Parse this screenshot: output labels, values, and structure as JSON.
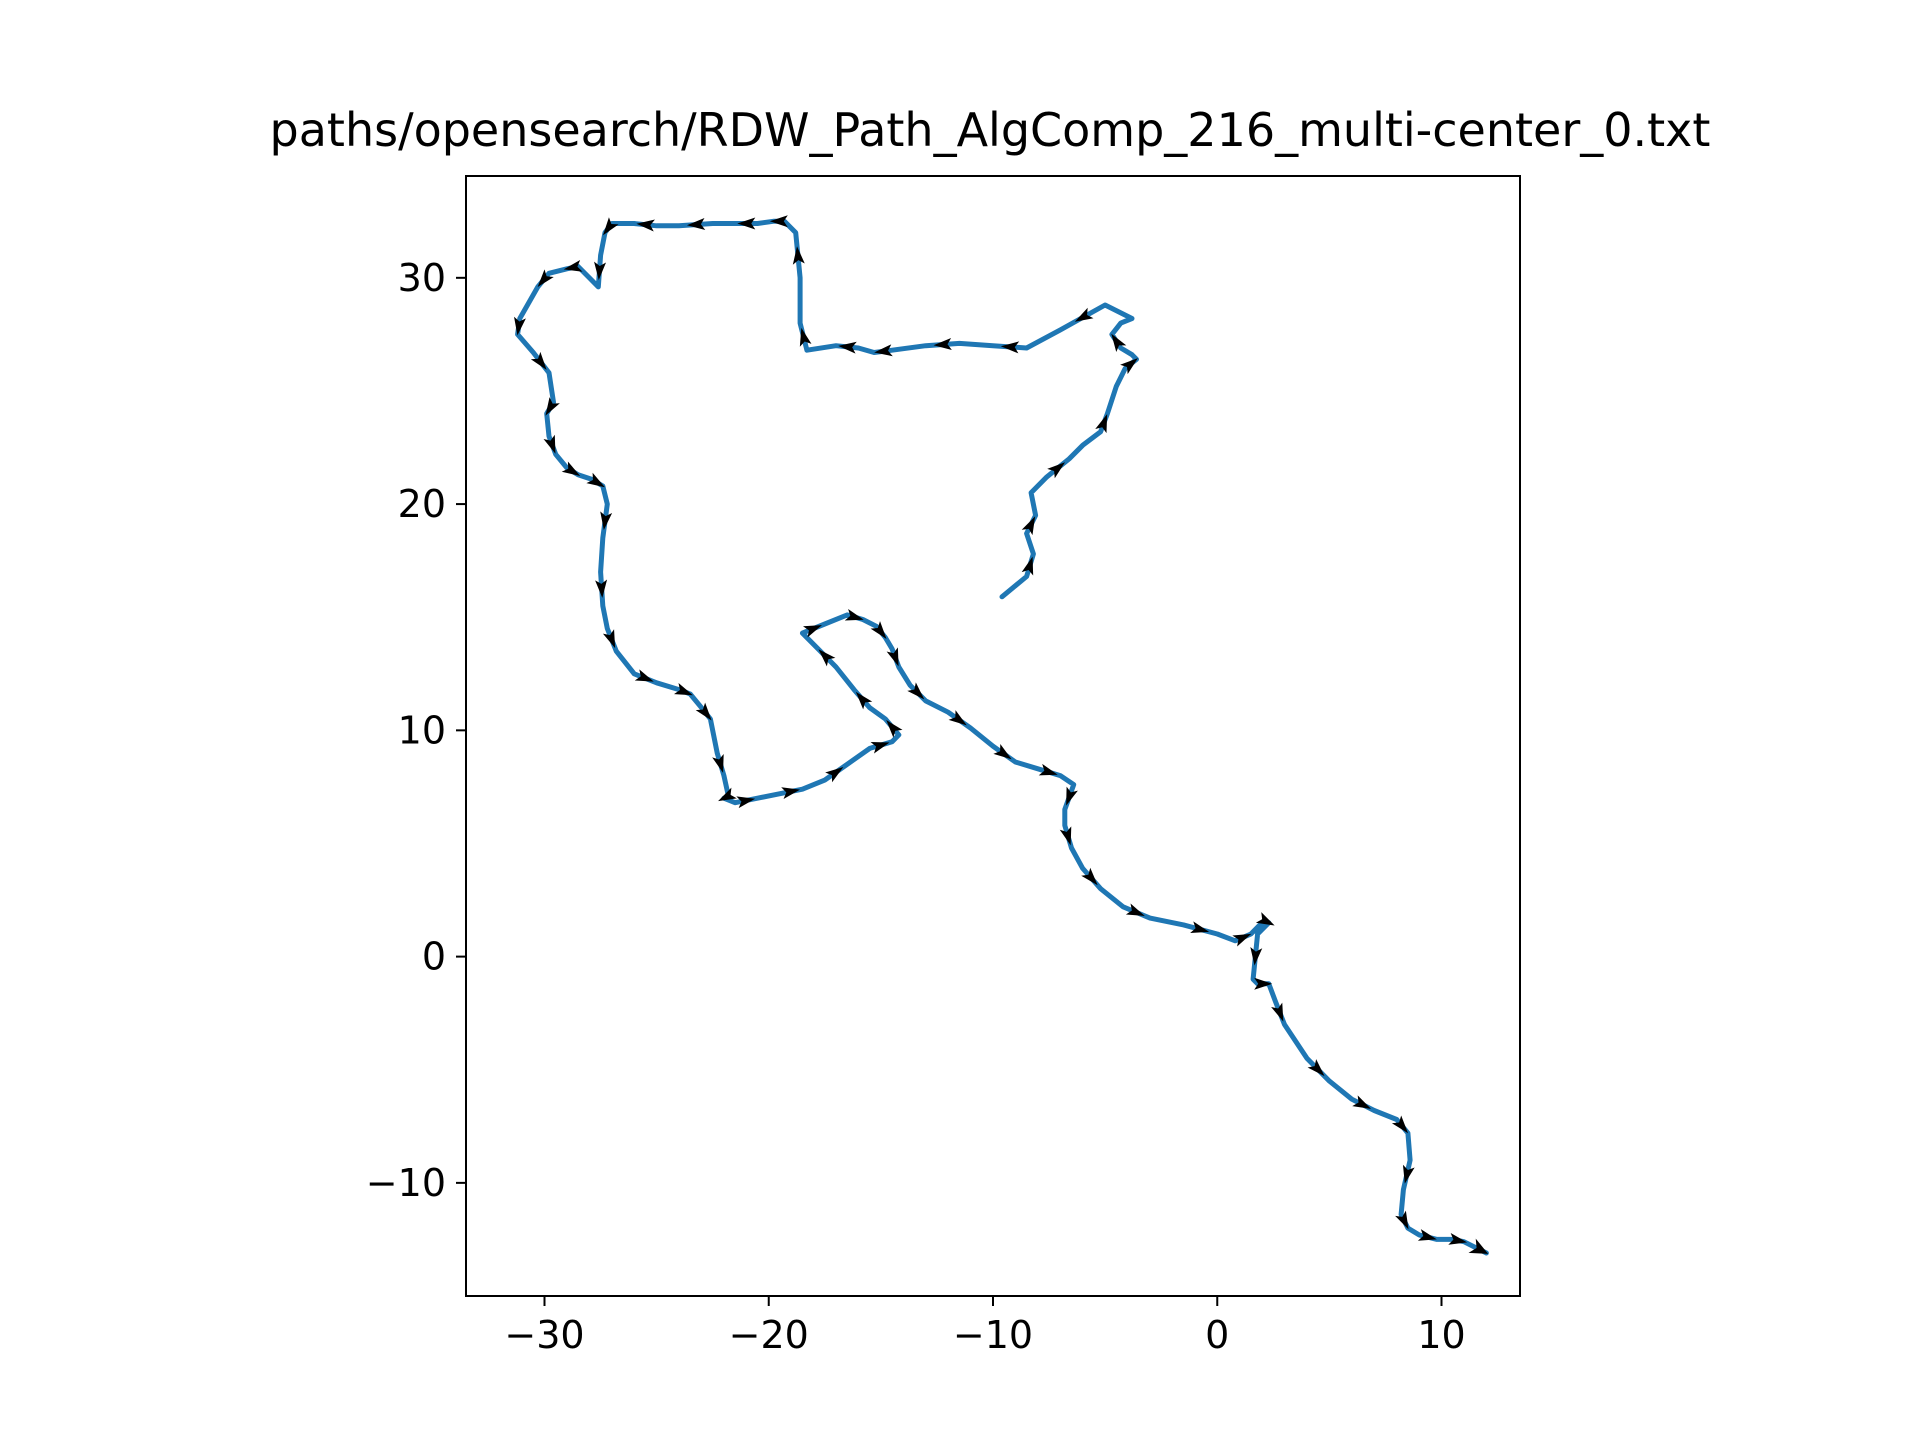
{
  "chart_data": {
    "type": "line",
    "title": "paths/opensearch/RDW_Path_AlgComp_216_multi-center_0.txt",
    "xlabel": "",
    "ylabel": "",
    "xlim": [
      -33.5,
      13.5
    ],
    "ylim": [
      -15,
      34.5
    ],
    "xticks": [
      -30,
      -20,
      -10,
      0,
      10
    ],
    "yticks": [
      -10,
      0,
      10,
      20,
      30
    ],
    "xtick_labels": [
      "−30",
      "−20",
      "−10",
      "0",
      "10"
    ],
    "ytick_labels": [
      "−10",
      "0",
      "10",
      "20",
      "30"
    ],
    "grid": false,
    "legend": "none",
    "line_color": "#1f77b4",
    "arrow_color": "#000000",
    "series": [
      {
        "x": [
          -9.6,
          -8.5,
          -8.2,
          -8.5,
          -8.1,
          -8.3,
          -7.6,
          -6.6,
          -6.0,
          -5.2,
          -4.9,
          -4.5,
          -4.1,
          -3.6,
          -3.8,
          -4.3,
          -4.7,
          -4.3,
          -3.8,
          -5.0,
          -7.0,
          -8.5,
          -10.0,
          -11.5,
          -13.0,
          -14.5,
          -15.3,
          -16.0,
          -17.0,
          -18.3,
          -18.6,
          -18.6,
          -18.8,
          -19.3,
          -19.8,
          -20.5,
          -21.5,
          -22.5,
          -24.0,
          -25.0,
          -26.0,
          -27.0,
          -27.3,
          -27.5,
          -27.6,
          -28.0,
          -28.5,
          -29.0,
          -29.8,
          -30.3,
          -31.1,
          -31.2,
          -30.5,
          -29.8,
          -29.6,
          -29.9,
          -29.8,
          -29.5,
          -29.0,
          -28.5,
          -27.9,
          -27.4,
          -27.2,
          -27.4,
          -27.5,
          -27.4,
          -27.2,
          -26.8,
          -26.0,
          -25.0,
          -24.0,
          -23.5,
          -23.0,
          -22.6,
          -22.3,
          -22.0,
          -21.8,
          -22.0,
          -21.5,
          -20.5,
          -19.5,
          -18.5,
          -17.5,
          -16.5,
          -15.5,
          -14.5,
          -14.2,
          -14.8,
          -15.5,
          -16.2,
          -17.0,
          -18.0,
          -18.5,
          -17.5,
          -16.5,
          -15.8,
          -15.2,
          -14.8,
          -14.5,
          -14.2,
          -13.7,
          -13.0,
          -12.0,
          -11.0,
          -10.0,
          -9.0,
          -8.0,
          -7.0,
          -6.4,
          -6.8,
          -6.8,
          -6.5,
          -6.0,
          -5.2,
          -4.2,
          -3.0,
          -1.5,
          0.0,
          0.8,
          1.5,
          2.1,
          2.3,
          1.8,
          1.6,
          1.8,
          2.3,
          2.6,
          3.0,
          4.0,
          5.0,
          6.0,
          7.0,
          8.0,
          8.5,
          8.6,
          8.3,
          8.2,
          8.5,
          9.0,
          9.8,
          10.5,
          11.0,
          12.0
        ],
        "y": [
          15.9,
          16.8,
          17.8,
          18.7,
          19.5,
          20.5,
          21.2,
          22.0,
          22.6,
          23.2,
          24.0,
          25.2,
          26.0,
          26.4,
          26.6,
          26.9,
          27.5,
          28.0,
          28.2,
          28.8,
          27.7,
          26.9,
          27.0,
          27.1,
          27.0,
          26.8,
          26.7,
          26.9,
          27.0,
          26.8,
          28.0,
          30.0,
          32.0,
          32.5,
          32.5,
          32.4,
          32.4,
          32.4,
          32.3,
          32.3,
          32.4,
          32.4,
          32.0,
          31.0,
          29.6,
          30.0,
          30.5,
          30.4,
          30.2,
          29.6,
          28.2,
          27.5,
          26.7,
          25.8,
          24.5,
          24.0,
          23.0,
          22.2,
          21.6,
          21.3,
          21.1,
          20.8,
          20.0,
          18.5,
          17.0,
          15.5,
          14.5,
          13.5,
          12.5,
          12.1,
          11.8,
          11.6,
          11.0,
          10.5,
          9.0,
          8.0,
          7.1,
          7.0,
          6.8,
          7.0,
          7.2,
          7.4,
          7.8,
          8.5,
          9.2,
          9.5,
          9.8,
          10.5,
          11.0,
          11.8,
          12.8,
          13.8,
          14.3,
          14.7,
          15.1,
          14.9,
          14.6,
          14.1,
          13.6,
          12.8,
          12.0,
          11.3,
          10.8,
          10.1,
          9.3,
          8.6,
          8.3,
          8.0,
          7.6,
          6.5,
          5.8,
          4.8,
          3.9,
          3.0,
          2.2,
          1.7,
          1.4,
          1.0,
          0.7,
          1.0,
          1.6,
          1.5,
          1.0,
          -1.0,
          -1.2,
          -1.2,
          -2.0,
          -3.0,
          -4.5,
          -5.5,
          -6.3,
          -6.8,
          -7.2,
          -7.8,
          -9.0,
          -10.3,
          -11.4,
          -12.0,
          -12.3,
          -12.5,
          -12.5,
          -12.6,
          -13.1
        ]
      }
    ],
    "arrow_indices": [
      1,
      3,
      6,
      9,
      12,
      15,
      19,
      21,
      23,
      25,
      27,
      29,
      31,
      33,
      35,
      37,
      39,
      41,
      43,
      46,
      48,
      50,
      52,
      54,
      56,
      58,
      60,
      62,
      64,
      66,
      68,
      70,
      72,
      74,
      76,
      78,
      80,
      82,
      84,
      86,
      88,
      90,
      92,
      94,
      96,
      98,
      100,
      102,
      104,
      106,
      108,
      110,
      112,
      114,
      116,
      118,
      120,
      122,
      124,
      126,
      128,
      130,
      132,
      134,
      136,
      138,
      140,
      142,
      144
    ]
  }
}
